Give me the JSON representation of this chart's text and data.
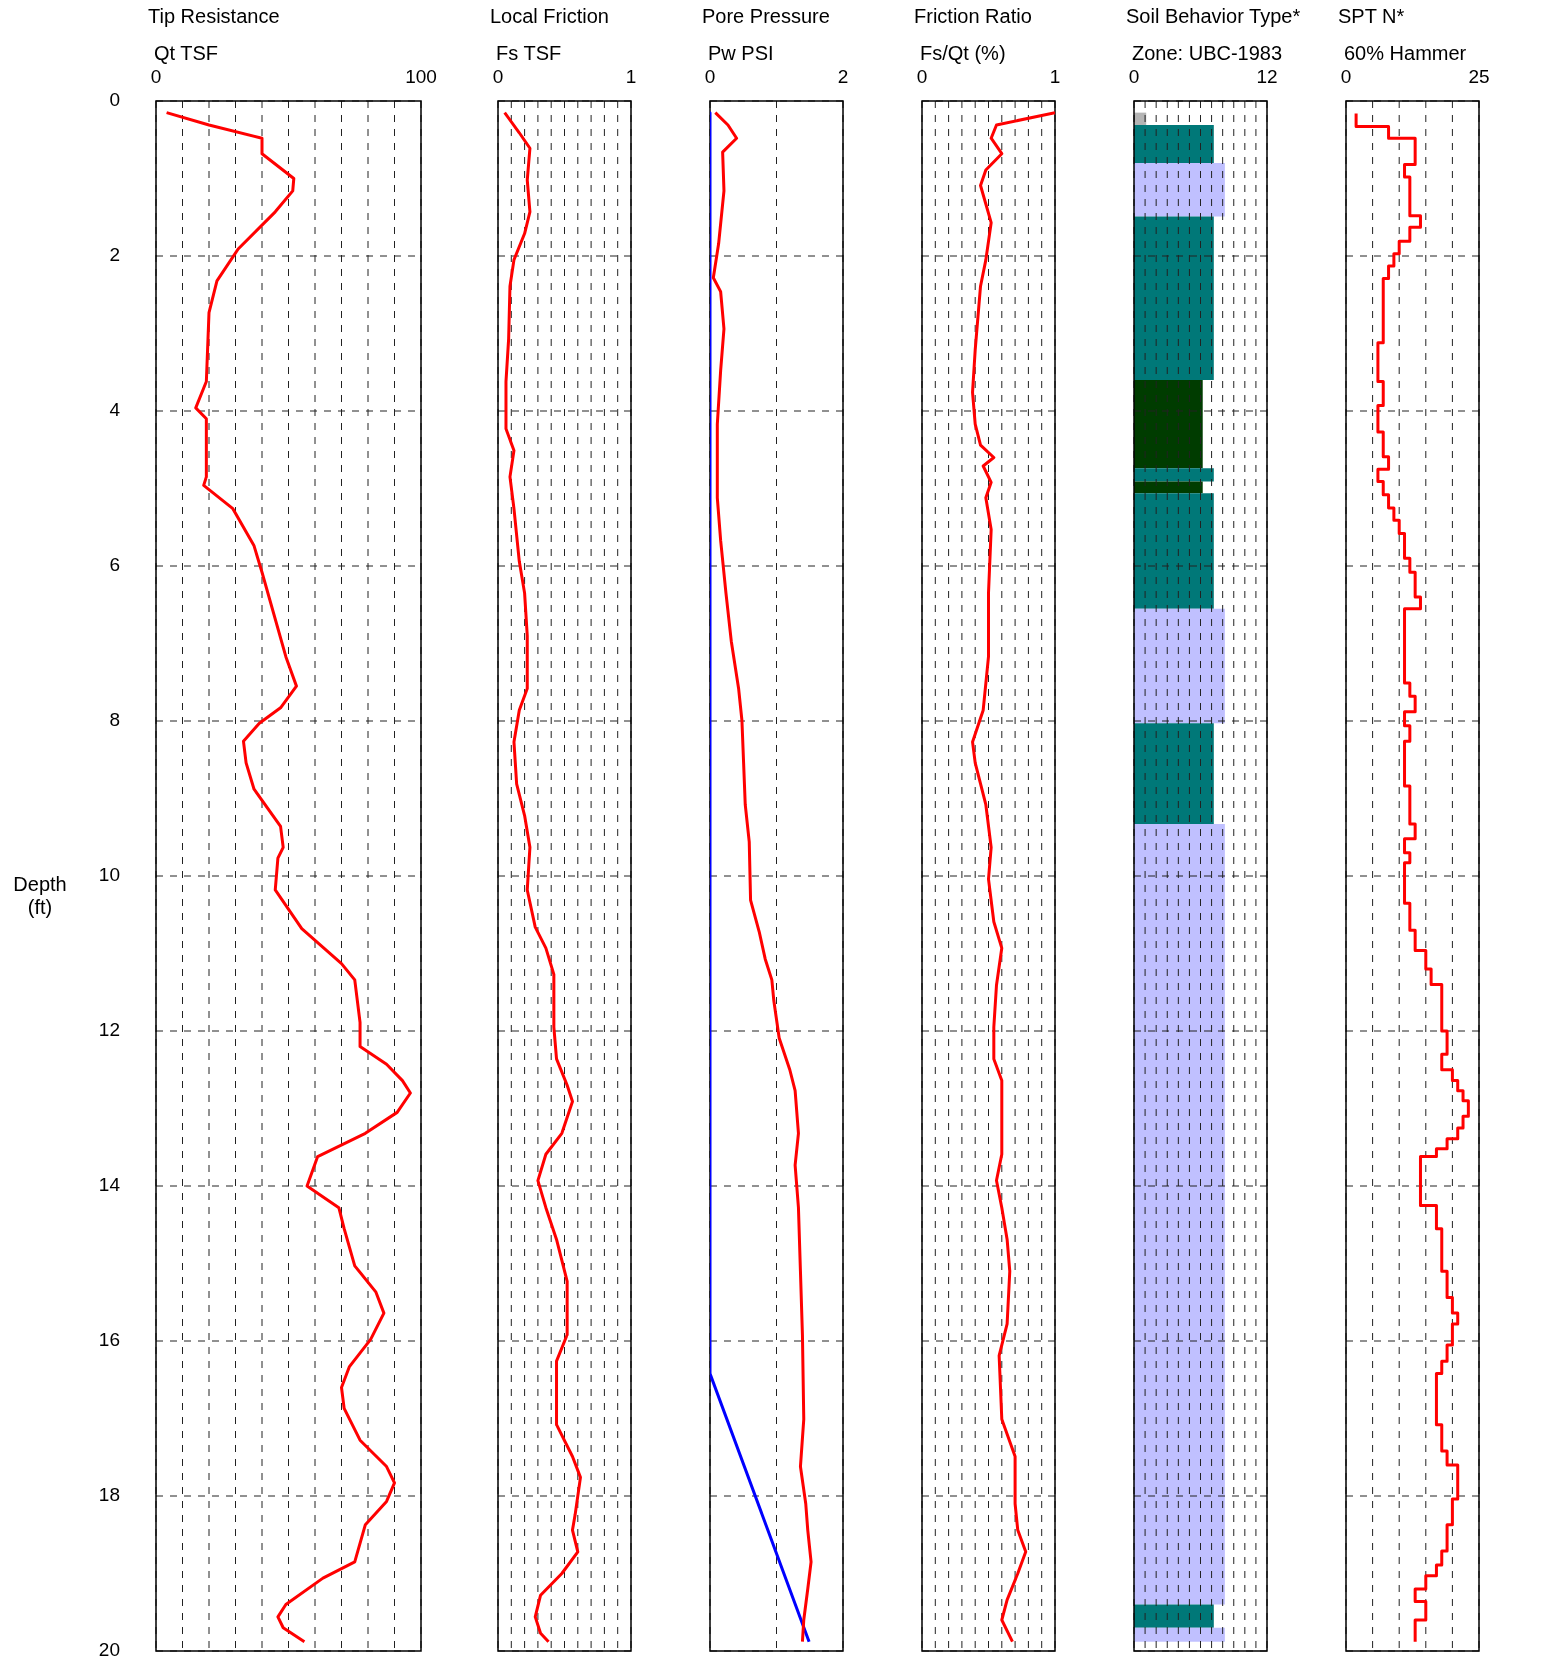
{
  "chart_data": [
    {
      "type": "line",
      "title": "Tip Resistance",
      "subtitle": "Qt TSF",
      "ylabel": "Depth (ft)",
      "xlim": [
        0,
        100
      ],
      "xticks": [
        0,
        {
          "value": 10,
          "label": null
        },
        {
          "value": 20,
          "label": null
        },
        {
          "value": 30,
          "label": null
        },
        {
          "value": 40,
          "label": null
        },
        {
          "value": 50,
          "label": null
        },
        {
          "value": 60,
          "label": null
        },
        {
          "value": 70,
          "label": null
        },
        {
          "value": 80,
          "label": null
        },
        {
          "value": 90,
          "label": null
        },
        100
      ],
      "ylim": [
        20,
        0
      ],
      "yticks": [
        0,
        2,
        4,
        6,
        8,
        10,
        12,
        14,
        16,
        18,
        20
      ],
      "grid": true,
      "series": [
        {
          "color": "#ff0000",
          "x": [
            4,
            20,
            40,
            40,
            52,
            51.6,
            45,
            31,
            23,
            20,
            19,
            15,
            19,
            19,
            18,
            29,
            37,
            40,
            49,
            53,
            47,
            39,
            33,
            34,
            37,
            47,
            48,
            46,
            45,
            55,
            70,
            75,
            77,
            77,
            87,
            93,
            96,
            91,
            79,
            61,
            57,
            69,
            71,
            75,
            83,
            86,
            81,
            73,
            70,
            71,
            77,
            87,
            90,
            87,
            79,
            75,
            63,
            49,
            46,
            48,
            56
          ],
          "values": [
            0.15,
            0.31,
            0.48,
            0.68,
            1.0,
            1.16,
            1.43,
            1.91,
            2.32,
            2.73,
            3.62,
            3.96,
            4.1,
            4.85,
            4.96,
            5.26,
            5.74,
            6.08,
            7.17,
            7.55,
            7.83,
            8.03,
            8.26,
            8.54,
            8.88,
            9.36,
            9.63,
            9.77,
            10.18,
            10.68,
            11.13,
            11.34,
            11.89,
            12.2,
            12.43,
            12.64,
            12.8,
            13.05,
            13.32,
            13.62,
            14.0,
            14.28,
            14.55,
            15.03,
            15.37,
            15.64,
            15.98,
            16.33,
            16.6,
            16.87,
            17.28,
            17.62,
            17.83,
            18.07,
            18.37,
            18.85,
            19.06,
            19.4,
            19.56,
            19.7,
            19.88
          ]
        }
      ]
    },
    {
      "type": "line",
      "title": "Local Friction",
      "subtitle": "Fs TSF",
      "tick_labels": "x",
      "xlim": [
        0,
        1
      ],
      "xticks": [
        0,
        {
          "value": 0.1,
          "label": null
        },
        {
          "value": 0.2,
          "label": null
        },
        {
          "value": 0.3,
          "label": null
        },
        {
          "value": 0.4,
          "label": null
        },
        {
          "value": 0.5,
          "label": null
        },
        {
          "value": 0.6,
          "label": null
        },
        {
          "value": 0.7,
          "label": null
        },
        {
          "value": 0.8,
          "label": null
        },
        {
          "value": 0.9,
          "label": null
        },
        1
      ],
      "ylim": [
        20,
        0
      ],
      "yticks": [
        0,
        2,
        4,
        6,
        8,
        10,
        12,
        14,
        16,
        18,
        20
      ],
      "grid": true,
      "series": [
        {
          "color": "#ff0000",
          "x": [
            0.05,
            0.16,
            0.24,
            0.22,
            0.24,
            0.2,
            0.12,
            0.09,
            0.08,
            0.06,
            0.06,
            0.12,
            0.09,
            0.12,
            0.16,
            0.2,
            0.22,
            0.22,
            0.16,
            0.12,
            0.14,
            0.2,
            0.24,
            0.22,
            0.28,
            0.36,
            0.42,
            0.42,
            0.44,
            0.52,
            0.56,
            0.48,
            0.36,
            0.3,
            0.36,
            0.44,
            0.52,
            0.52,
            0.44,
            0.44,
            0.56,
            0.62,
            0.58,
            0.56,
            0.6,
            0.48,
            0.32,
            0.28,
            0.32,
            0.38
          ],
          "values": [
            0.15,
            0.41,
            0.61,
            1.02,
            1.43,
            1.71,
            2.05,
            2.39,
            3.07,
            3.62,
            4.23,
            4.51,
            4.85,
            5.26,
            5.94,
            6.35,
            6.9,
            7.58,
            7.86,
            8.27,
            8.81,
            9.22,
            9.63,
            10.18,
            10.66,
            10.93,
            11.27,
            11.95,
            12.36,
            12.7,
            12.91,
            13.32,
            13.59,
            13.93,
            14.28,
            14.69,
            15.23,
            15.92,
            16.26,
            17.08,
            17.49,
            17.76,
            18.24,
            18.44,
            18.72,
            19.0,
            19.28,
            19.56,
            19.77,
            19.88
          ]
        }
      ]
    },
    {
      "type": "line",
      "title": "Pore Pressure",
      "subtitle": "Pw PSI",
      "tick_labels": "x",
      "xlim": [
        0,
        2
      ],
      "xticks": [
        0,
        {
          "value": 1,
          "label": null
        },
        2
      ],
      "ylim": [
        20,
        0
      ],
      "yticks": [
        0,
        2,
        4,
        6,
        8,
        10,
        12,
        14,
        16,
        18,
        20
      ],
      "grid": true,
      "series": [
        {
          "color": "#ff0000",
          "x": [
            0.08,
            0.27,
            0.4,
            0.19,
            0.21,
            0.13,
            0.05,
            0.16,
            0.21,
            0.16,
            0.11,
            0.11,
            0.16,
            0.24,
            0.32,
            0.43,
            0.48,
            0.53,
            0.59,
            0.61,
            0.74,
            0.83,
            0.93,
            0.96,
            1.04,
            1.2,
            1.28,
            1.33,
            1.28,
            1.33,
            1.36,
            1.39,
            1.41,
            1.36,
            1.44,
            1.47,
            1.52,
            1.47,
            1.41,
            1.39
          ],
          "values": [
            0.15,
            0.31,
            0.48,
            0.66,
            1.16,
            1.84,
            2.28,
            2.46,
            2.94,
            3.48,
            4.17,
            5.12,
            5.67,
            6.35,
            6.97,
            7.58,
            7.99,
            9.08,
            9.56,
            10.31,
            10.72,
            11.07,
            11.34,
            11.61,
            12.09,
            12.5,
            12.77,
            13.32,
            13.73,
            14.28,
            15.1,
            15.92,
            17.01,
            17.62,
            18.1,
            18.44,
            18.85,
            19.2,
            19.6,
            19.88
          ]
        },
        {
          "color": "#0000ff",
          "x": [
            0,
            0,
            1.49
          ],
          "values": [
            0.15,
            16.42,
            19.88
          ]
        }
      ]
    },
    {
      "type": "line",
      "title": "Friction Ratio",
      "subtitle": "Fs/Qt (%)",
      "tick_labels": "x",
      "xlim": [
        0,
        1
      ],
      "xticks": [
        0,
        {
          "value": 0.1,
          "label": null
        },
        {
          "value": 0.2,
          "label": null
        },
        {
          "value": 0.3,
          "label": null
        },
        {
          "value": 0.4,
          "label": null
        },
        {
          "value": 0.5,
          "label": null
        },
        {
          "value": 0.6,
          "label": null
        },
        {
          "value": 0.7,
          "label": null
        },
        {
          "value": 0.8,
          "label": null
        },
        {
          "value": 0.9,
          "label": null
        },
        1
      ],
      "ylim": [
        20,
        0
      ],
      "yticks": [
        0,
        2,
        4,
        6,
        8,
        10,
        12,
        14,
        16,
        18,
        20
      ],
      "grid": true,
      "series": [
        {
          "color": "#ff0000",
          "x": [
            1.0,
            0.56,
            0.52,
            0.6,
            0.48,
            0.44,
            0.52,
            0.48,
            0.44,
            0.4,
            0.38,
            0.4,
            0.44,
            0.54,
            0.46,
            0.52,
            0.48,
            0.52,
            0.5,
            0.5,
            0.46,
            0.38,
            0.4,
            0.48,
            0.52,
            0.5,
            0.54,
            0.6,
            0.56,
            0.54,
            0.54,
            0.6,
            0.6,
            0.56,
            0.6,
            0.64,
            0.66,
            0.64,
            0.58,
            0.6,
            0.7,
            0.7,
            0.72,
            0.78,
            0.72,
            0.64,
            0.6,
            0.68
          ],
          "values": [
            0.15,
            0.31,
            0.48,
            0.68,
            0.89,
            1.09,
            1.57,
            2.05,
            2.39,
            3.21,
            3.76,
            4.17,
            4.44,
            4.6,
            4.71,
            4.92,
            5.12,
            5.53,
            6.35,
            7.17,
            7.86,
            8.27,
            8.54,
            9.08,
            9.63,
            10.04,
            10.59,
            10.93,
            11.41,
            11.95,
            12.36,
            12.64,
            13.59,
            13.93,
            14.28,
            14.69,
            15.1,
            15.78,
            16.19,
            17.01,
            17.49,
            18.1,
            18.44,
            18.72,
            19.0,
            19.34,
            19.6,
            19.88
          ]
        }
      ]
    },
    {
      "type": "histogram",
      "orientation": "horizontal",
      "title": "Soil Behavior Type*",
      "subtitle": "Zone: UBC-1983",
      "tick_labels": "x",
      "xlim": [
        0,
        12
      ],
      "xticks": [
        0,
        {
          "value": 1,
          "label": null
        },
        {
          "value": 2,
          "label": null
        },
        {
          "value": 3,
          "label": null
        },
        {
          "value": 4,
          "label": null
        },
        {
          "value": 5,
          "label": null
        },
        {
          "value": 6,
          "label": null
        },
        {
          "value": 7,
          "label": null
        },
        {
          "value": 8,
          "label": null
        },
        {
          "value": 9,
          "label": null
        },
        {
          "value": 10,
          "label": null
        },
        {
          "value": 11,
          "label": null
        },
        12
      ],
      "ylim": [
        20,
        0
      ],
      "yticks": [
        0,
        2,
        4,
        6,
        8,
        10,
        12,
        14,
        16,
        18,
        20
      ],
      "grid": true,
      "bins": [
        0.15,
        0.31,
        0.8,
        1.49,
        3.6,
        4.74,
        4.91,
        5.06,
        6.55,
        8.03,
        9.33,
        19.4,
        19.7,
        19.88
      ],
      "values": [
        1.1,
        7.2,
        8.2,
        7.2,
        6.2,
        7.2,
        6.2,
        7.2,
        8.2,
        7.2,
        8.2,
        7.2,
        8.2
      ],
      "colors": [
        "#b4b4b4",
        "#007878",
        "#c0c0ff",
        "#007878",
        "#003c00",
        "#007878",
        "#003c00",
        "#007878",
        "#c0c0ff",
        "#007878",
        "#c0c0ff",
        "#007878",
        "#c0c0ff"
      ]
    },
    {
      "type": "step",
      "title": "SPT N*",
      "subtitle": "60% Hammer",
      "tick_labels": "x",
      "xlim": [
        0,
        25
      ],
      "xticks": [
        0,
        {
          "value": 5,
          "label": null
        },
        {
          "value": 10,
          "label": null
        },
        {
          "value": 15,
          "label": null
        },
        {
          "value": 20,
          "label": null
        },
        25
      ],
      "ylim": [
        20,
        0
      ],
      "yticks": [
        0,
        2,
        4,
        6,
        8,
        10,
        12,
        14,
        16,
        18,
        20
      ],
      "grid": true,
      "series": [
        {
          "color": "#ff0000",
          "x": [
            1.9,
            8,
            13,
            11,
            12,
            14,
            12,
            10,
            9,
            8,
            7,
            6,
            7,
            6,
            7,
            8,
            6,
            7,
            8,
            9,
            10,
            11,
            12,
            13,
            14,
            11,
            12,
            13,
            11,
            12,
            11,
            12,
            13,
            11,
            12,
            11,
            12,
            13,
            15,
            16,
            18,
            19,
            18,
            20,
            21,
            22,
            23,
            22,
            21,
            19,
            17,
            14,
            17,
            18,
            19,
            20,
            21,
            20,
            19,
            18,
            17,
            18,
            19,
            21,
            20,
            19,
            18,
            17,
            15,
            13,
            15,
            13,
            13
          ],
          "values": [
            0.16,
            0.33,
            0.48,
            0.82,
            0.98,
            1.48,
            1.63,
            1.81,
            1.97,
            2.13,
            2.29,
            3.12,
            3.62,
            3.93,
            4.27,
            4.59,
            4.75,
            4.91,
            5.08,
            5.25,
            5.41,
            5.58,
            5.9,
            6.08,
            6.4,
            6.55,
            7.51,
            7.68,
            7.88,
            8.06,
            8.26,
            8.84,
            9.33,
            9.52,
            9.7,
            9.83,
            10.35,
            10.7,
            10.96,
            11.2,
            11.4,
            12.0,
            12.3,
            12.5,
            12.64,
            12.77,
            12.9,
            13.1,
            13.25,
            13.39,
            13.52,
            13.62,
            14.25,
            14.55,
            15.1,
            15.44,
            15.64,
            15.78,
            16.05,
            16.26,
            16.42,
            17.08,
            17.42,
            17.6,
            18.04,
            18.37,
            18.71,
            18.89,
            19.03,
            19.2,
            19.36,
            19.6,
            19.88
          ]
        }
      ]
    }
  ]
}
